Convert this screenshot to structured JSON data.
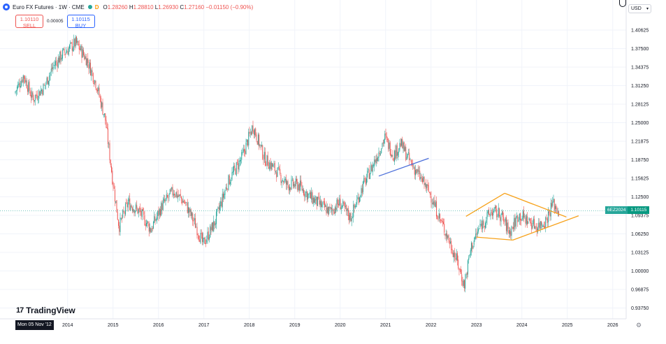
{
  "header": {
    "symbol_title": "Euro FX Futures · 1W · CME",
    "d_badge": "D",
    "ohlc": {
      "o_label": "O",
      "o": "1.28260",
      "h_label": "H",
      "h": "1.28810",
      "l_label": "L",
      "l": "1.26930",
      "c_label": "C",
      "c": "1.27160",
      "change": "−0.01150 (−0.90%)"
    }
  },
  "trade": {
    "sell_price": "1.10110",
    "sell_label": "SELL",
    "spread": "0.00005",
    "buy_price": "1.10115",
    "buy_label": "BUY"
  },
  "currency": {
    "selected": "USD"
  },
  "branding": {
    "logo_text": "TradingView"
  },
  "crosshair": {
    "date_label": "Mon 05 Nov '12"
  },
  "last_price": {
    "ticker": "6EZ2024",
    "value": "1.10115"
  },
  "colors": {
    "up": "#26a69a",
    "down": "#ef5350",
    "trend_orange": "#f7a21b",
    "trend_blue": "#4c6fda",
    "grid": "#f0f3fa"
  },
  "chart_data": {
    "type": "candlestick",
    "title": "Euro FX Futures · 1W · CME",
    "x_tick_labels": [
      "2014",
      "2015",
      "2016",
      "2017",
      "2018",
      "2019",
      "2020",
      "2021",
      "2022",
      "2023",
      "2024",
      "2025",
      "2026"
    ],
    "y_tick_labels": [
      "1.40625",
      "1.37500",
      "1.34375",
      "1.31250",
      "1.28125",
      "1.25000",
      "1.21875",
      "1.18750",
      "1.15625",
      "1.12500",
      "1.09375",
      "1.06250",
      "1.03125",
      "1.00000",
      "0.96875",
      "0.93750"
    ],
    "ylim": [
      0.925,
      1.42
    ],
    "last_value": 1.10115,
    "path_points": [
      {
        "t": 2012.85,
        "v": 1.3
      },
      {
        "t": 2013.05,
        "v": 1.33
      },
      {
        "t": 2013.25,
        "v": 1.29
      },
      {
        "t": 2013.5,
        "v": 1.31
      },
      {
        "t": 2013.7,
        "v": 1.345
      },
      {
        "t": 2013.9,
        "v": 1.365
      },
      {
        "t": 2014.2,
        "v": 1.385
      },
      {
        "t": 2014.45,
        "v": 1.355
      },
      {
        "t": 2014.65,
        "v": 1.315
      },
      {
        "t": 2014.85,
        "v": 1.255
      },
      {
        "t": 2015.0,
        "v": 1.16
      },
      {
        "t": 2015.15,
        "v": 1.075
      },
      {
        "t": 2015.35,
        "v": 1.115
      },
      {
        "t": 2015.6,
        "v": 1.1
      },
      {
        "t": 2015.85,
        "v": 1.07
      },
      {
        "t": 2016.1,
        "v": 1.11
      },
      {
        "t": 2016.35,
        "v": 1.135
      },
      {
        "t": 2016.6,
        "v": 1.115
      },
      {
        "t": 2016.85,
        "v": 1.075
      },
      {
        "t": 2017.0,
        "v": 1.045
      },
      {
        "t": 2017.25,
        "v": 1.08
      },
      {
        "t": 2017.55,
        "v": 1.15
      },
      {
        "t": 2017.85,
        "v": 1.19
      },
      {
        "t": 2018.1,
        "v": 1.245
      },
      {
        "t": 2018.35,
        "v": 1.19
      },
      {
        "t": 2018.6,
        "v": 1.17
      },
      {
        "t": 2018.85,
        "v": 1.145
      },
      {
        "t": 2019.1,
        "v": 1.145
      },
      {
        "t": 2019.35,
        "v": 1.125
      },
      {
        "t": 2019.6,
        "v": 1.11
      },
      {
        "t": 2019.8,
        "v": 1.1
      },
      {
        "t": 2020.0,
        "v": 1.115
      },
      {
        "t": 2020.25,
        "v": 1.09
      },
      {
        "t": 2020.5,
        "v": 1.14
      },
      {
        "t": 2020.75,
        "v": 1.18
      },
      {
        "t": 2021.0,
        "v": 1.225
      },
      {
        "t": 2021.2,
        "v": 1.195
      },
      {
        "t": 2021.35,
        "v": 1.215
      },
      {
        "t": 2021.55,
        "v": 1.185
      },
      {
        "t": 2021.8,
        "v": 1.155
      },
      {
        "t": 2022.0,
        "v": 1.13
      },
      {
        "t": 2022.2,
        "v": 1.09
      },
      {
        "t": 2022.4,
        "v": 1.055
      },
      {
        "t": 2022.6,
        "v": 1.015
      },
      {
        "t": 2022.75,
        "v": 0.975
      },
      {
        "t": 2022.9,
        "v": 1.04
      },
      {
        "t": 2023.1,
        "v": 1.075
      },
      {
        "t": 2023.35,
        "v": 1.1
      },
      {
        "t": 2023.55,
        "v": 1.095
      },
      {
        "t": 2023.75,
        "v": 1.065
      },
      {
        "t": 2023.95,
        "v": 1.095
      },
      {
        "t": 2024.15,
        "v": 1.085
      },
      {
        "t": 2024.35,
        "v": 1.075
      },
      {
        "t": 2024.55,
        "v": 1.085
      },
      {
        "t": 2024.7,
        "v": 1.115
      },
      {
        "t": 2024.82,
        "v": 1.101
      }
    ],
    "trendlines": [
      {
        "name": "blue-support",
        "color": "#4c6fda",
        "points": [
          [
            2020.85,
            1.16
          ],
          [
            2021.95,
            1.19
          ]
        ]
      },
      {
        "name": "diamond-upper-left",
        "color": "#f7a21b",
        "points": [
          [
            2022.77,
            1.092
          ],
          [
            2023.62,
            1.131
          ]
        ]
      },
      {
        "name": "diamond-upper-right",
        "color": "#f7a21b",
        "points": [
          [
            2023.62,
            1.131
          ],
          [
            2024.98,
            1.091
          ]
        ]
      },
      {
        "name": "diamond-lower-left",
        "color": "#f7a21b",
        "points": [
          [
            2023.0,
            1.057
          ],
          [
            2023.8,
            1.052
          ]
        ]
      },
      {
        "name": "diamond-lower-right",
        "color": "#f7a21b",
        "points": [
          [
            2023.8,
            1.052
          ],
          [
            2025.25,
            1.093
          ]
        ]
      }
    ]
  }
}
